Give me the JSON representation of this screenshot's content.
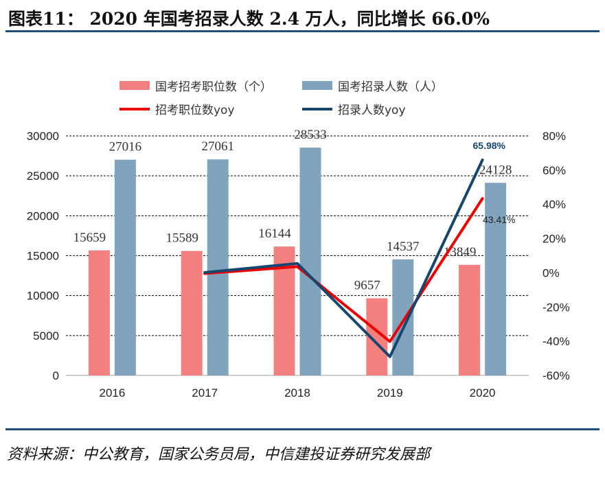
{
  "title": "图表11： 2020 年国考招录人数 2.4 万人，同比增长 66.0%",
  "source": "资料来源：中公教育，国家公务员局，中信建投证券研究发展部",
  "colors": {
    "posts_bar": "#f47f7f",
    "hires_bar": "#80a4be",
    "posts_yoy_line": "#ee0000",
    "hires_yoy_line": "#14466e",
    "rule": "#1f4e79"
  },
  "chart_data": {
    "type": "bar",
    "categories": [
      "2016",
      "2017",
      "2018",
      "2019",
      "2020"
    ],
    "series": [
      {
        "name": "国考招考职位数（个）",
        "type": "bar",
        "axis": "left",
        "values": [
          15659,
          15589,
          16144,
          9657,
          13849
        ],
        "labels": [
          "15659",
          "15589",
          "16144",
          "9657",
          "13849"
        ]
      },
      {
        "name": "国考招录人数（人）",
        "type": "bar",
        "axis": "left",
        "values": [
          27016,
          27061,
          28533,
          14537,
          24128
        ],
        "labels": [
          "27016",
          "27061",
          "28533",
          "14537",
          "24128"
        ]
      },
      {
        "name": "招考职位数yoy",
        "type": "line",
        "axis": "right",
        "values": [
          null,
          -0.45,
          3.56,
          -40.18,
          43.41
        ],
        "labels": [
          "",
          "",
          "",
          "",
          "43.41%"
        ]
      },
      {
        "name": "招录人数yoy",
        "type": "line",
        "axis": "right",
        "values": [
          null,
          0.17,
          5.44,
          -49.05,
          65.98
        ],
        "labels": [
          "",
          "",
          "",
          "",
          "65.98%"
        ]
      }
    ],
    "left_axis": {
      "min": 0,
      "max": 30000,
      "ticks": [
        "0",
        "5000",
        "10000",
        "15000",
        "20000",
        "25000",
        "30000"
      ]
    },
    "right_axis": {
      "min": -60,
      "max": 80,
      "ticks": [
        "-60%",
        "-40%",
        "-20%",
        "0%",
        "20%",
        "40%",
        "60%",
        "80%"
      ]
    },
    "grid": true,
    "legend_position": "top"
  }
}
